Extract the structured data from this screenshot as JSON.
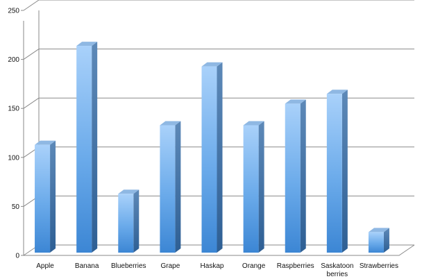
{
  "chart_data": {
    "type": "bar",
    "title": "",
    "xlabel": "",
    "ylabel": "",
    "categories": [
      "Apple",
      "Banana",
      "Blueberries",
      "Grape",
      "Haskap",
      "Orange",
      "Raspberries",
      "Saskatoon berries",
      "Strawberries"
    ],
    "category_lines": [
      [
        "Apple"
      ],
      [
        "Banana"
      ],
      [
        "Blueberries"
      ],
      [
        "Grape"
      ],
      [
        "Haskap"
      ],
      [
        "Orange"
      ],
      [
        "Raspberries"
      ],
      [
        "Saskatoon",
        "berries"
      ],
      [
        "Strawberries"
      ]
    ],
    "values": [
      110,
      211,
      60,
      130,
      190,
      130,
      152,
      162,
      21
    ],
    "ylim": [
      0,
      250
    ],
    "yticks": [
      "0",
      "50",
      "100",
      "150",
      "200",
      "250"
    ],
    "grid": true,
    "style": "3d-column",
    "colors": {
      "bar_light": "#9fcaf7",
      "bar_mid": "#5ea2e6",
      "bar_dark": "#3b7fc9",
      "bar_side": "#3a6ea5",
      "bar_top": "#8fb8e3",
      "grid": "#8a8a8a"
    }
  }
}
